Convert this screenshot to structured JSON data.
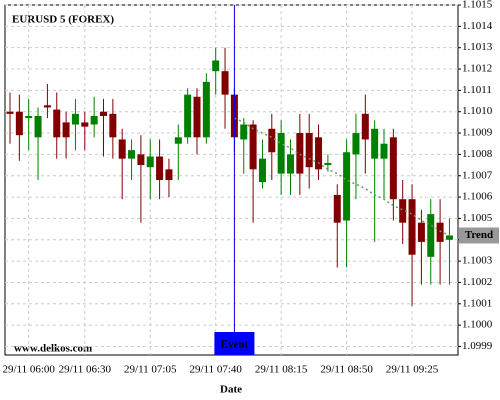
{
  "chart_data": {
    "type": "candlestick",
    "title": "EURUSD 5 (FOREX)",
    "x_label": "Date",
    "watermark": "www.delkos.com",
    "categories": [
      null,
      null,
      "29/11 06:00",
      null,
      null,
      null,
      null,
      null,
      "29/11 06:30",
      null,
      null,
      null,
      null,
      null,
      null,
      "29/11 07:05",
      null,
      null,
      null,
      null,
      null,
      null,
      "29/11 07:40",
      null,
      null,
      null,
      null,
      null,
      null,
      "29/11 08:15",
      null,
      null,
      null,
      null,
      null,
      null,
      "29/11 08:50",
      null,
      null,
      null,
      null,
      null,
      null,
      "29/11 09:25",
      null,
      null,
      null,
      null
    ],
    "open": [
      1.101,
      1.101,
      1.10097,
      1.10088,
      1.10103,
      1.10101,
      1.10095,
      1.10094,
      1.10095,
      1.10094,
      1.101,
      1.10099,
      1.10087,
      1.10078,
      1.1008,
      1.10074,
      1.10079,
      1.10073,
      1.10085,
      1.10088,
      1.10107,
      1.10088,
      1.10119,
      1.10119,
      1.10108,
      1.10087,
      1.10094,
      1.10067,
      1.10092,
      1.10071,
      1.10071,
      1.1009,
      1.1009,
      1.10088,
      1.10075,
      1.10061,
      1.10049,
      1.1008,
      1.10099,
      1.10078,
      1.10078,
      1.10088,
      1.10059,
      1.10059,
      1.10048,
      1.10032,
      1.10048,
      1.1004
    ],
    "high": [
      1.10109,
      1.10108,
      1.10106,
      1.10102,
      1.10113,
      1.10109,
      1.101,
      1.10106,
      1.101,
      1.10107,
      1.10106,
      1.10106,
      1.10092,
      1.10087,
      1.10089,
      1.10087,
      1.10087,
      1.10078,
      1.10094,
      1.10111,
      1.10111,
      1.10118,
      1.1013,
      1.1013,
      1.10111,
      1.10097,
      1.10096,
      1.10087,
      1.10099,
      1.10096,
      1.10087,
      1.10099,
      1.10099,
      1.10094,
      1.1008,
      1.10066,
      1.10087,
      1.10099,
      1.10108,
      1.10096,
      1.10092,
      1.10092,
      1.10068,
      1.10066,
      1.10054,
      1.10059,
      1.10059,
      1.1005
    ],
    "low": [
      1.10085,
      1.10077,
      1.10082,
      1.10068,
      1.10097,
      1.10078,
      1.10078,
      1.10082,
      1.10082,
      1.10088,
      1.10079,
      1.10078,
      1.10059,
      1.10068,
      1.10048,
      1.10059,
      1.10059,
      1.1006,
      1.10068,
      1.10085,
      1.1008,
      1.10085,
      1.10108,
      1.10092,
      1.10081,
      1.10071,
      1.10048,
      1.10064,
      1.10068,
      1.10061,
      1.10061,
      1.10061,
      1.10064,
      1.10068,
      1.10072,
      1.10027,
      1.10027,
      1.10059,
      1.10071,
      1.10039,
      1.10059,
      1.10049,
      1.10038,
      1.10009,
      1.10019,
      1.10019,
      1.10019,
      1.10019
    ],
    "close": [
      1.10099,
      1.10089,
      1.10098,
      1.10098,
      1.10102,
      1.10088,
      1.10088,
      1.10099,
      1.10093,
      1.10098,
      1.10098,
      1.10088,
      1.10078,
      1.10082,
      1.10075,
      1.10079,
      1.10068,
      1.10068,
      1.10088,
      1.10108,
      1.10088,
      1.10114,
      1.10124,
      1.10108,
      1.10088,
      1.10094,
      1.10073,
      1.10078,
      1.10081,
      1.1009,
      1.1008,
      1.10071,
      1.10074,
      1.10073,
      1.10076,
      1.10048,
      1.10081,
      1.1009,
      1.10087,
      1.10092,
      1.10085,
      1.10059,
      1.10048,
      1.10033,
      1.10039,
      1.10052,
      1.10039,
      1.10042
    ],
    "up_color": "#008000",
    "down_color": "#800000",
    "trend": {
      "name": "Trend",
      "color": "#669966",
      "values": [
        null,
        null,
        null,
        null,
        null,
        null,
        null,
        null,
        null,
        null,
        null,
        null,
        null,
        null,
        null,
        null,
        null,
        null,
        null,
        null,
        null,
        null,
        null,
        null,
        1.10097,
        1.10095,
        1.10092,
        1.1009,
        1.10088,
        1.10085,
        1.10083,
        1.1008,
        1.10078,
        1.10076,
        1.10073,
        1.10071,
        1.10068,
        1.10066,
        1.10064,
        1.10061,
        1.10059,
        1.10056,
        1.10054,
        1.10052,
        1.10049,
        1.10047,
        1.10044,
        1.10042
      ]
    },
    "annotations": [
      {
        "text": "Event",
        "category_index": 24,
        "color": "#0000ff"
      }
    ],
    "ylim": [
      1.09986,
      1.1015
    ],
    "yticks": [
      1.0999,
      {
        "value": 1.1,
        "label": "1.1000"
      },
      1.1001,
      1.1002,
      1.1003,
      1.1004,
      1.1005,
      1.1006,
      1.1007,
      1.1008,
      1.1009,
      {
        "value": 1.101,
        "label": "1.1010"
      },
      1.1011,
      1.1012,
      1.1013,
      1.1014,
      1.1015
    ],
    "grid": true,
    "y_axis_side": "right"
  }
}
